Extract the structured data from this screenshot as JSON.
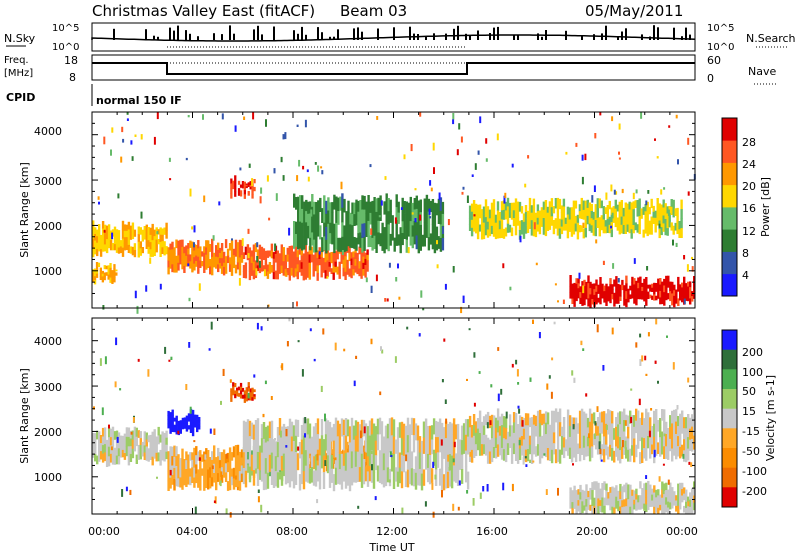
{
  "header": {
    "title": "Christmas Valley East (fitACF)",
    "beam": "Beam 03",
    "date": "05/May/2011"
  },
  "top_panels": {
    "nsky_label": "N.Sky",
    "nsearch_label": "N.Search",
    "nsky_ticks": [
      "10^5",
      "10^0"
    ],
    "nsearch_ticks": [
      "10^5",
      "10^0"
    ],
    "freq_label": "Freq.",
    "freq_unit": "[MHz]",
    "freq_ticks": [
      "18",
      "8"
    ],
    "nave_label": "Nave",
    "nave_ticks": [
      "60",
      "0"
    ],
    "cpid_label": "CPID",
    "cpid_value": "normal 150 IF"
  },
  "axes": {
    "xlabel": "Time UT",
    "x_ticks": [
      "00:00",
      "04:00",
      "08:00",
      "12:00",
      "16:00",
      "20:00",
      "00:00"
    ],
    "ylabel": "Slant Range [km]",
    "y_ticks": [
      "4000",
      "3000",
      "2000",
      "1000"
    ]
  },
  "colorbars": {
    "power": {
      "label": "Power [dB]",
      "ticks": [
        "28",
        "24",
        "20",
        "16",
        "12",
        "8",
        "4"
      ],
      "colors": [
        "#1a1aff",
        "#3355aa",
        "#2e7d32",
        "#66bb6a",
        "#ffd700",
        "#ff9800",
        "#ff5722",
        "#e00000"
      ]
    },
    "velocity": {
      "label": "Velocity [m s-1]",
      "ticks": [
        "200",
        "100",
        "50",
        "15",
        "-15",
        "-50",
        "-100",
        "-200"
      ],
      "colors": [
        "#1a1aff",
        "#2f6f3a",
        "#4caf50",
        "#9ccc65",
        "#c8c8c8",
        "#ffa726",
        "#fb8c00",
        "#ef6c00",
        "#e00000"
      ]
    }
  },
  "chart_data": [
    {
      "type": "heatmap",
      "name": "Power",
      "x_range_hours": [
        0,
        24
      ],
      "y_range_km": [
        180,
        4500
      ],
      "units": "dB",
      "scale": [
        0,
        30
      ],
      "regions": [
        {
          "t": [
            0.0,
            3.0
          ],
          "r": [
            1400,
            2000
          ],
          "value": 18
        },
        {
          "t": [
            0.0,
            1.0
          ],
          "r": [
            800,
            1100
          ],
          "value": 20
        },
        {
          "t": [
            3.0,
            6.0
          ],
          "r": [
            1000,
            1600
          ],
          "value": 22
        },
        {
          "t": [
            5.5,
            6.5
          ],
          "r": [
            2700,
            3000
          ],
          "value": 26
        },
        {
          "t": [
            6.0,
            11.0
          ],
          "r": [
            900,
            1500
          ],
          "value": 24
        },
        {
          "t": [
            8.0,
            14.0
          ],
          "r": [
            1500,
            2600
          ],
          "value": 10
        },
        {
          "t": [
            15.0,
            23.5
          ],
          "r": [
            1800,
            2500
          ],
          "value": 16
        },
        {
          "t": [
            19.0,
            24.0
          ],
          "r": [
            300,
            800
          ],
          "value": 28
        }
      ]
    },
    {
      "type": "heatmap",
      "name": "Velocity",
      "x_range_hours": [
        0,
        24
      ],
      "y_range_km": [
        180,
        4500
      ],
      "units": "m s-1",
      "scale": [
        -200,
        200
      ],
      "regions": [
        {
          "t": [
            0.0,
            3.0
          ],
          "r": [
            1300,
            2000
          ],
          "value": 0
        },
        {
          "t": [
            3.0,
            4.3
          ],
          "r": [
            2000,
            2400
          ],
          "value": 200
        },
        {
          "t": [
            3.0,
            6.0
          ],
          "r": [
            800,
            1600
          ],
          "value": -40
        },
        {
          "t": [
            5.5,
            6.5
          ],
          "r": [
            2700,
            3000
          ],
          "value": -150
        },
        {
          "t": [
            6.0,
            8.0
          ],
          "r": [
            1000,
            1600
          ],
          "value": 60
        },
        {
          "t": [
            8.5,
            11.0
          ],
          "r": [
            1200,
            1700
          ],
          "value": -60
        },
        {
          "t": [
            6.0,
            15.0
          ],
          "r": [
            800,
            2200
          ],
          "value": 0
        },
        {
          "t": [
            15.0,
            24.0
          ],
          "r": [
            1400,
            2400
          ],
          "value": 0
        },
        {
          "t": [
            19.0,
            24.0
          ],
          "r": [
            200,
            800
          ],
          "value": 0
        }
      ]
    }
  ]
}
